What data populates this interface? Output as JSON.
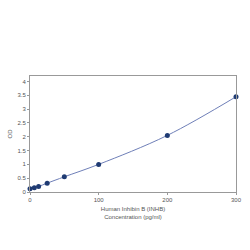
{
  "chart_data": {
    "type": "line",
    "xlabel": "Human Inhibin B (INHB)\nConcentration (pg/ml)",
    "ylabel": "OD",
    "x": [
      0,
      6.25,
      12.5,
      25,
      50,
      100,
      200,
      300
    ],
    "values": [
      0.12,
      0.15,
      0.2,
      0.32,
      0.55,
      1.0,
      2.05,
      3.45
    ],
    "color": "#1f3b73",
    "marker": "circle",
    "line_style": "solid",
    "xlim": [
      0,
      300
    ],
    "xticks": [
      0,
      100,
      200,
      300
    ],
    "ylim": [
      0,
      4.2
    ],
    "yticks": [
      0,
      0.5,
      1,
      1.5,
      2,
      2.5,
      3,
      3.5,
      4
    ],
    "grid": false
  }
}
